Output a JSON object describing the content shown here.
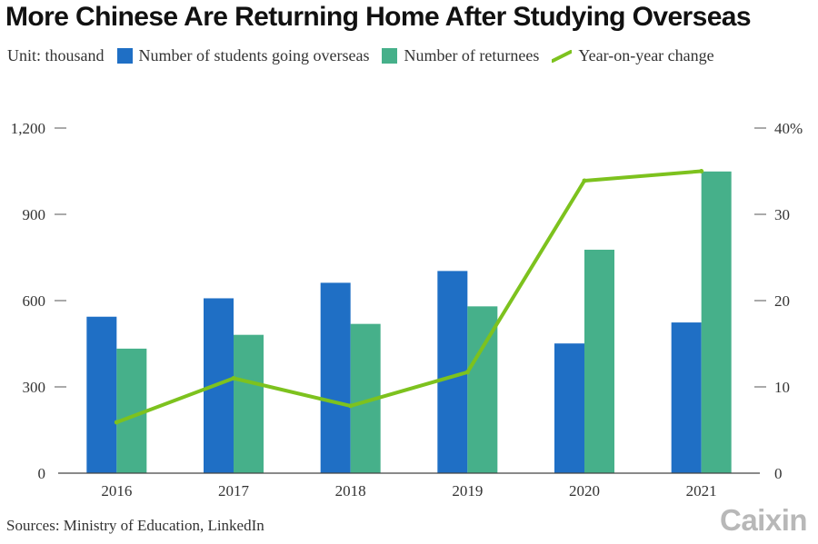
{
  "title": "More Chinese Are Returning Home After Studying Overseas",
  "unit_label": "Unit: thousand",
  "colors": {
    "outbound": "#1f6fc5",
    "returnees": "#46b08a",
    "yoy_line": "#7dc21e",
    "logo": "#b8b8b8"
  },
  "chart_data": {
    "type": "bar",
    "title": "More Chinese Are Returning Home After Studying Overseas",
    "categories": [
      "2016",
      "2017",
      "2018",
      "2019",
      "2020",
      "2021"
    ],
    "series": [
      {
        "name": "Number of students going overseas",
        "type": "bar",
        "axis": "left",
        "values": [
          544,
          608,
          662,
          703,
          451,
          524
        ]
      },
      {
        "name": "Number of returnees",
        "type": "bar",
        "axis": "left",
        "values": [
          433,
          481,
          519,
          580,
          777,
          1049
        ]
      },
      {
        "name": "Year-on-year change",
        "type": "line",
        "axis": "right",
        "values": [
          5.9,
          11.0,
          7.8,
          11.7,
          33.9,
          35.0
        ]
      }
    ],
    "y_left": {
      "ylim": [
        0,
        1200
      ],
      "ticks": [
        "0",
        "300",
        "600",
        "900",
        "1,200"
      ],
      "tick_values": [
        0,
        300,
        600,
        900,
        1200
      ]
    },
    "y_right": {
      "ylim": [
        0,
        40
      ],
      "ticks": [
        "0",
        "10",
        "20",
        "30",
        "40%"
      ],
      "tick_values": [
        0,
        10,
        20,
        30,
        40
      ]
    },
    "xlabel": "",
    "ylabel": "",
    "legend_position": "top-left",
    "grid": false
  },
  "source": "Sources: Ministry of Education, LinkedIn",
  "logo": "Caixin"
}
